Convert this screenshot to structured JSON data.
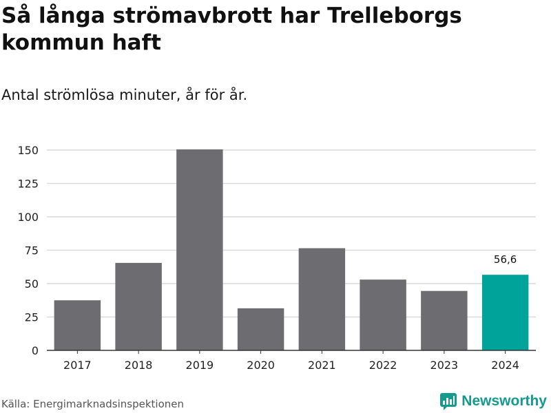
{
  "title": "Så långa strömavbrott har Trelleborgs kommun haft",
  "subtitle": "Antal strömlösa minuter, år för år.",
  "source": "Källa: Energimarknadsinspektionen",
  "brand": {
    "name": "Newsworthy",
    "icon": "newsworthy-logo-icon",
    "color": "#149a8e"
  },
  "colors": {
    "bar": "#6d6c70",
    "highlight": "#00a39a",
    "grid": "#d9d9d9",
    "axis": "#333333"
  },
  "chart_data": {
    "type": "bar",
    "title": "Så långa strömavbrott har Trelleborgs kommun haft",
    "subtitle": "Antal strömlösa minuter, år för år.",
    "xlabel": "",
    "ylabel": "",
    "categories": [
      "2017",
      "2018",
      "2019",
      "2020",
      "2021",
      "2022",
      "2023",
      "2024"
    ],
    "values": [
      37.5,
      65.5,
      150.5,
      31.5,
      76.5,
      53.0,
      44.5,
      56.6
    ],
    "highlight_index": 7,
    "ylim": [
      0,
      150
    ],
    "yticks": [
      0,
      25,
      50,
      75,
      100,
      125,
      150
    ],
    "ytick_labels": [
      "0",
      "25",
      "50",
      "75",
      "100",
      "125",
      "150"
    ],
    "annotations": [
      {
        "category": "2024",
        "text": "56,6"
      }
    ],
    "grid": true
  }
}
